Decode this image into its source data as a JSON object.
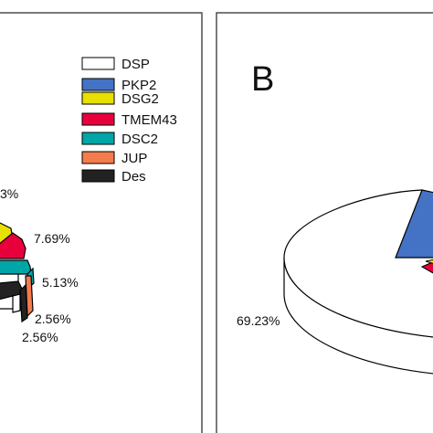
{
  "colors": {
    "DSP": "#ffffff",
    "PKP2": "#4472c4",
    "DSG2": "#e8e000",
    "TMEM43": "#e8003c",
    "DSC2": "#00a5a8",
    "JUP": "#f47b4e",
    "Des": "#222222"
  },
  "chart_data": [
    {
      "type": "pie",
      "panel_letter": "",
      "three_d": true,
      "legend_position": "top-right",
      "legend": [
        "DSP",
        "PKP2",
        "DSG2",
        "TMEM43",
        "DSC2",
        "JUP",
        "Des"
      ],
      "slices": [
        {
          "label": "DSP",
          "value": null,
          "value_label": ""
        },
        {
          "label": "PKP2",
          "value": null,
          "value_label": ""
        },
        {
          "label": "DSG2",
          "value": null,
          "value_label": "3%"
        },
        {
          "label": "TMEM43",
          "value": 7.69,
          "value_label": "7.69%"
        },
        {
          "label": "DSC2",
          "value": 5.13,
          "value_label": "5.13%"
        },
        {
          "label": "JUP",
          "value": 2.56,
          "value_label": "2.56%"
        },
        {
          "label": "Des",
          "value": 2.56,
          "value_label": "2.56%"
        }
      ]
    },
    {
      "type": "pie",
      "panel_letter": "B",
      "three_d": true,
      "slices": [
        {
          "label": "DSP",
          "value": 69.23,
          "value_label": "69.23%"
        },
        {
          "label": "PKP2",
          "value": null,
          "value_label": ""
        },
        {
          "label": "DSG2",
          "value": null,
          "value_label": ""
        },
        {
          "label": "TMEM43",
          "value": null,
          "value_label": ""
        }
      ]
    }
  ]
}
